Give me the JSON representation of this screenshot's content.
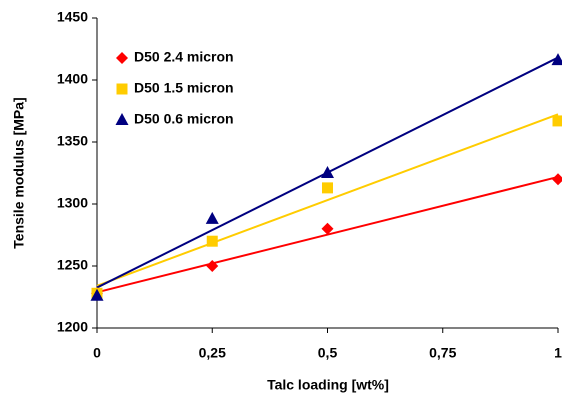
{
  "chart_data": {
    "type": "scatter",
    "xlabel": "Talc loading [wt%]",
    "ylabel": "Tensile modulus [MPa]",
    "x": [
      0,
      0.25,
      0.5,
      1
    ],
    "series": [
      {
        "name": "D50 2.4 micron",
        "color": "#ff0000",
        "marker": "diamond",
        "values": [
          1228,
          1250,
          1280,
          1320
        ]
      },
      {
        "name": "D50 1.5 micron",
        "color": "#ffcc00",
        "marker": "square",
        "values": [
          1228,
          1270,
          1313,
          1367
        ]
      },
      {
        "name": "D50 0.6 micron",
        "color": "#000080",
        "marker": "triangle",
        "values": [
          1226,
          1288,
          1325,
          1416
        ]
      }
    ],
    "trendline": "linear",
    "xlim": [
      0,
      1
    ],
    "xticks": [
      0,
      {
        "value": 0.25,
        "label": "0,25"
      },
      {
        "value": 0.5,
        "label": "0,5"
      },
      {
        "value": 0.75,
        "label": "0,75"
      },
      1
    ],
    "ylim": [
      1200,
      1450
    ],
    "yticks": [
      1200,
      1250,
      1300,
      1350,
      1400,
      1450
    ],
    "legend": "top-left"
  }
}
